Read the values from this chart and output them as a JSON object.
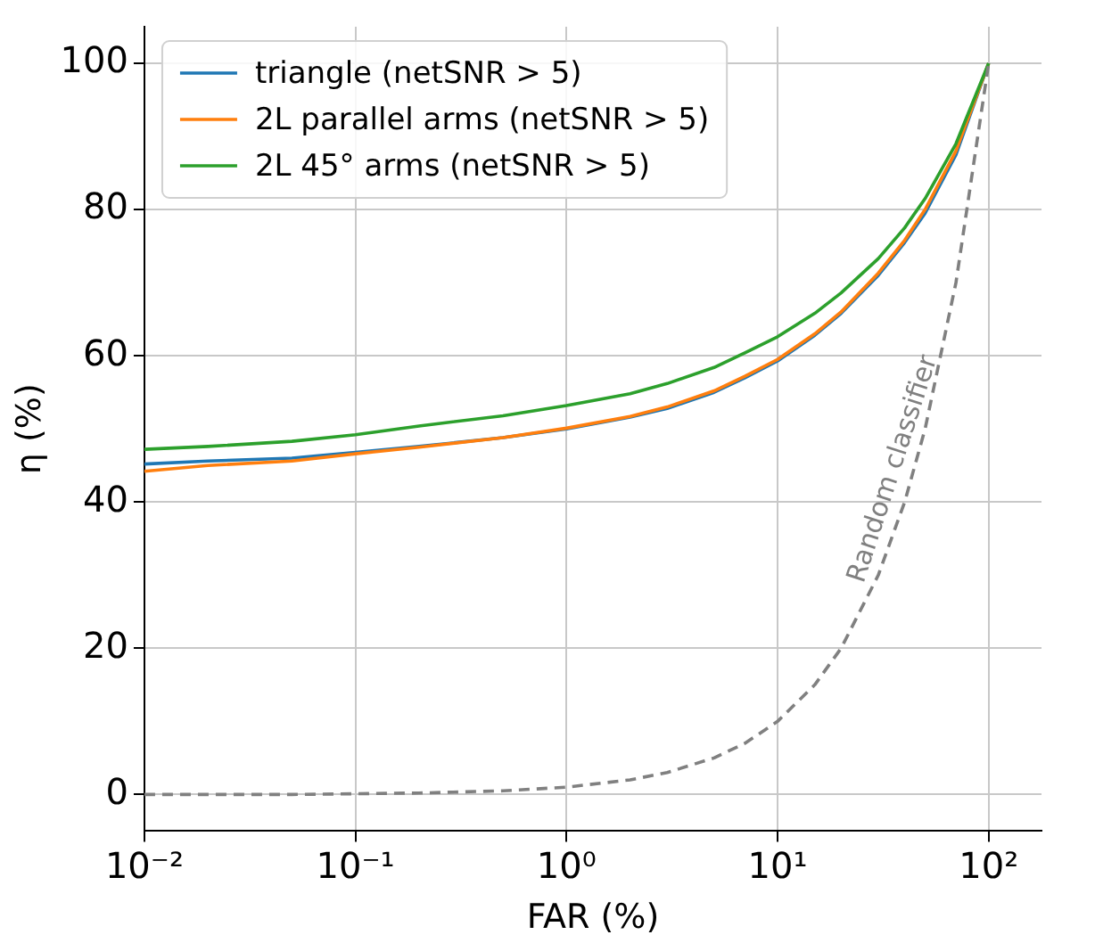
{
  "chart_data": {
    "type": "line",
    "xlabel": "FAR (%)",
    "ylabel": "η (%)",
    "log": "x",
    "x": [
      0.01,
      0.02,
      0.05,
      0.1,
      0.2,
      0.5,
      1,
      2,
      3,
      5,
      7,
      10,
      15,
      20,
      30,
      40,
      50,
      70,
      100
    ],
    "series": [
      {
        "name": "triangle (netSNR > 5)",
        "color": "#1f77b4",
        "values": [
          45.2,
          45.6,
          46.0,
          46.8,
          47.6,
          48.8,
          50.0,
          51.6,
          52.8,
          55.0,
          57.0,
          59.3,
          62.8,
          65.8,
          71.0,
          75.5,
          79.5,
          87.5,
          100
        ]
      },
      {
        "name": "2L parallel arms (netSNR > 5)",
        "color": "#ff7f0e",
        "values": [
          44.2,
          45.0,
          45.6,
          46.6,
          47.5,
          48.8,
          50.1,
          51.7,
          53.0,
          55.2,
          57.2,
          59.5,
          63.0,
          66.0,
          71.3,
          75.8,
          80.0,
          88.0,
          100
        ]
      },
      {
        "name": "2L 45° arms (netSNR > 5)",
        "color": "#2ca02c",
        "values": [
          47.2,
          47.6,
          48.3,
          49.2,
          50.4,
          51.8,
          53.2,
          54.8,
          56.2,
          58.4,
          60.4,
          62.6,
          65.8,
          68.6,
          73.3,
          77.5,
          81.5,
          89.0,
          100
        ]
      },
      {
        "color": "#808080",
        "line_style": "dashed",
        "values": [
          0,
          0,
          0,
          0.1,
          0.2,
          0.5,
          1,
          2,
          3,
          5,
          7,
          10,
          15,
          20,
          30,
          40,
          50,
          70,
          100
        ]
      }
    ],
    "xlim": [
      0.01,
      178
    ],
    "xticks": [
      {
        "value": 0.01,
        "label": "10⁻²"
      },
      {
        "value": 0.1,
        "label": "10⁻¹"
      },
      {
        "value": 1,
        "label": "10⁰"
      },
      {
        "value": 10,
        "label": "10¹"
      },
      {
        "value": 100,
        "label": "10²"
      }
    ],
    "ylim": [
      -5,
      105
    ],
    "yticks": [
      0,
      20,
      40,
      60,
      80,
      100
    ],
    "grid": true,
    "legend": "top left",
    "marker": "none",
    "line_style": "solid",
    "annotations": [
      "Random classifier"
    ]
  }
}
